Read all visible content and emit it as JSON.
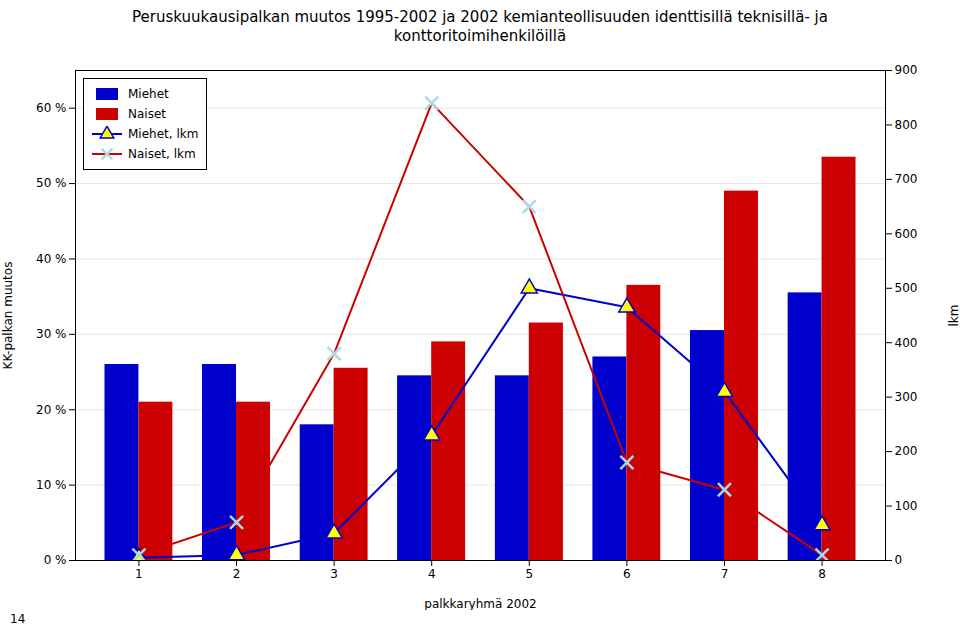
{
  "chart_data": {
    "type": "bar",
    "title": "Peruskuukausipalkan muutos 1995-2002 ja 2002 kemianteollisuuden identtisillä teknisillä- ja\nkonttoritoimihenkilöillä",
    "xlabel": "palkkaryhmä 2002",
    "ylabel": "KK-palkan muutos",
    "y2label": "lkm",
    "categories": [
      1,
      2,
      3,
      4,
      5,
      6,
      7,
      8
    ],
    "series": [
      {
        "name": "Miehet",
        "color": "#0000cc",
        "values": [
          0.26,
          0.26,
          0.18,
          0.245,
          0.245,
          0.27,
          0.305,
          0.355
        ]
      },
      {
        "name": "Naiset",
        "color": "#cc0000",
        "values": [
          0.21,
          0.21,
          0.255,
          0.29,
          0.315,
          0.365,
          0.49,
          0.535
        ]
      },
      {
        "name": "Miehet, lkm",
        "color": "#0000cc",
        "type": "line",
        "axis": "y2",
        "marker": "triangle",
        "values": [
          5,
          10,
          50,
          230,
          500,
          465,
          310,
          65
        ]
      },
      {
        "name": "Naiset, lkm",
        "color": "#cc0000",
        "type": "line",
        "axis": "y2",
        "marker": "x",
        "values": [
          10,
          70,
          380,
          840,
          650,
          180,
          130,
          10
        ]
      }
    ],
    "ylim": [
      0,
      0.65
    ],
    "yticks": [
      {
        "value": 0,
        "label": "0 %"
      },
      {
        "value": 0.1,
        "label": "10 %"
      },
      {
        "value": 0.2,
        "label": "20 %"
      },
      {
        "value": 0.3,
        "label": "30 %"
      },
      {
        "value": 0.4,
        "label": "40 %"
      },
      {
        "value": 0.5,
        "label": "50 %"
      },
      {
        "value": 0.6,
        "label": "60 %"
      }
    ],
    "y2lim": [
      0,
      900
    ],
    "y2ticks": [
      0,
      100,
      200,
      300,
      400,
      500,
      600,
      700,
      800,
      900
    ],
    "grid": true,
    "legend": "upper left",
    "annotations": [
      "14"
    ]
  }
}
